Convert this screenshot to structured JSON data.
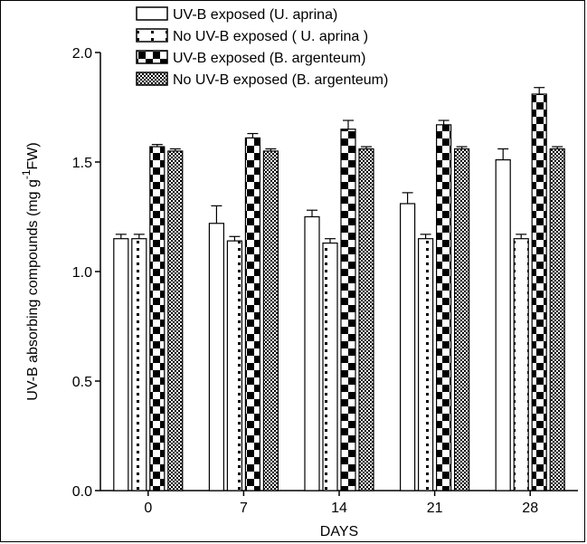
{
  "chart_data": {
    "type": "bar",
    "xlabel": "DAYS",
    "ylabel": "UV-B absorbing compounds (mg g",
    "ylabel_sup": "-1",
    "ylabel_end": "FW)",
    "categories": [
      "0",
      "7",
      "14",
      "21",
      "28"
    ],
    "ylim": [
      0.0,
      2.0
    ],
    "yticks": [
      0.0,
      0.5,
      1.0,
      1.5,
      2.0
    ],
    "ytick_labels": [
      "0.0",
      "0.5",
      "1.0",
      "1.5",
      "2.0"
    ],
    "legend_position": "top",
    "series": [
      {
        "name": "UV-B exposed (U. aprina)",
        "pattern": "white-bar",
        "values": [
          1.15,
          1.22,
          1.25,
          1.31,
          1.51
        ],
        "errors": [
          0.02,
          0.08,
          0.03,
          0.05,
          0.05
        ]
      },
      {
        "name": "No UV-B exposed ( U. aprina )",
        "pattern": "dotted",
        "values": [
          1.15,
          1.14,
          1.13,
          1.15,
          1.15
        ],
        "errors": [
          0.02,
          0.02,
          0.02,
          0.02,
          0.02
        ]
      },
      {
        "name": "UV-B exposed (B. argenteum)",
        "pattern": "checker",
        "values": [
          1.57,
          1.61,
          1.65,
          1.67,
          1.81
        ],
        "errors": [
          0.01,
          0.02,
          0.04,
          0.02,
          0.03
        ]
      },
      {
        "name": "No UV-B exposed (B. argenteum)",
        "pattern": "crosshatch",
        "values": [
          1.55,
          1.55,
          1.56,
          1.56,
          1.56
        ],
        "errors": [
          0.01,
          0.01,
          0.01,
          0.01,
          0.01
        ]
      }
    ]
  }
}
